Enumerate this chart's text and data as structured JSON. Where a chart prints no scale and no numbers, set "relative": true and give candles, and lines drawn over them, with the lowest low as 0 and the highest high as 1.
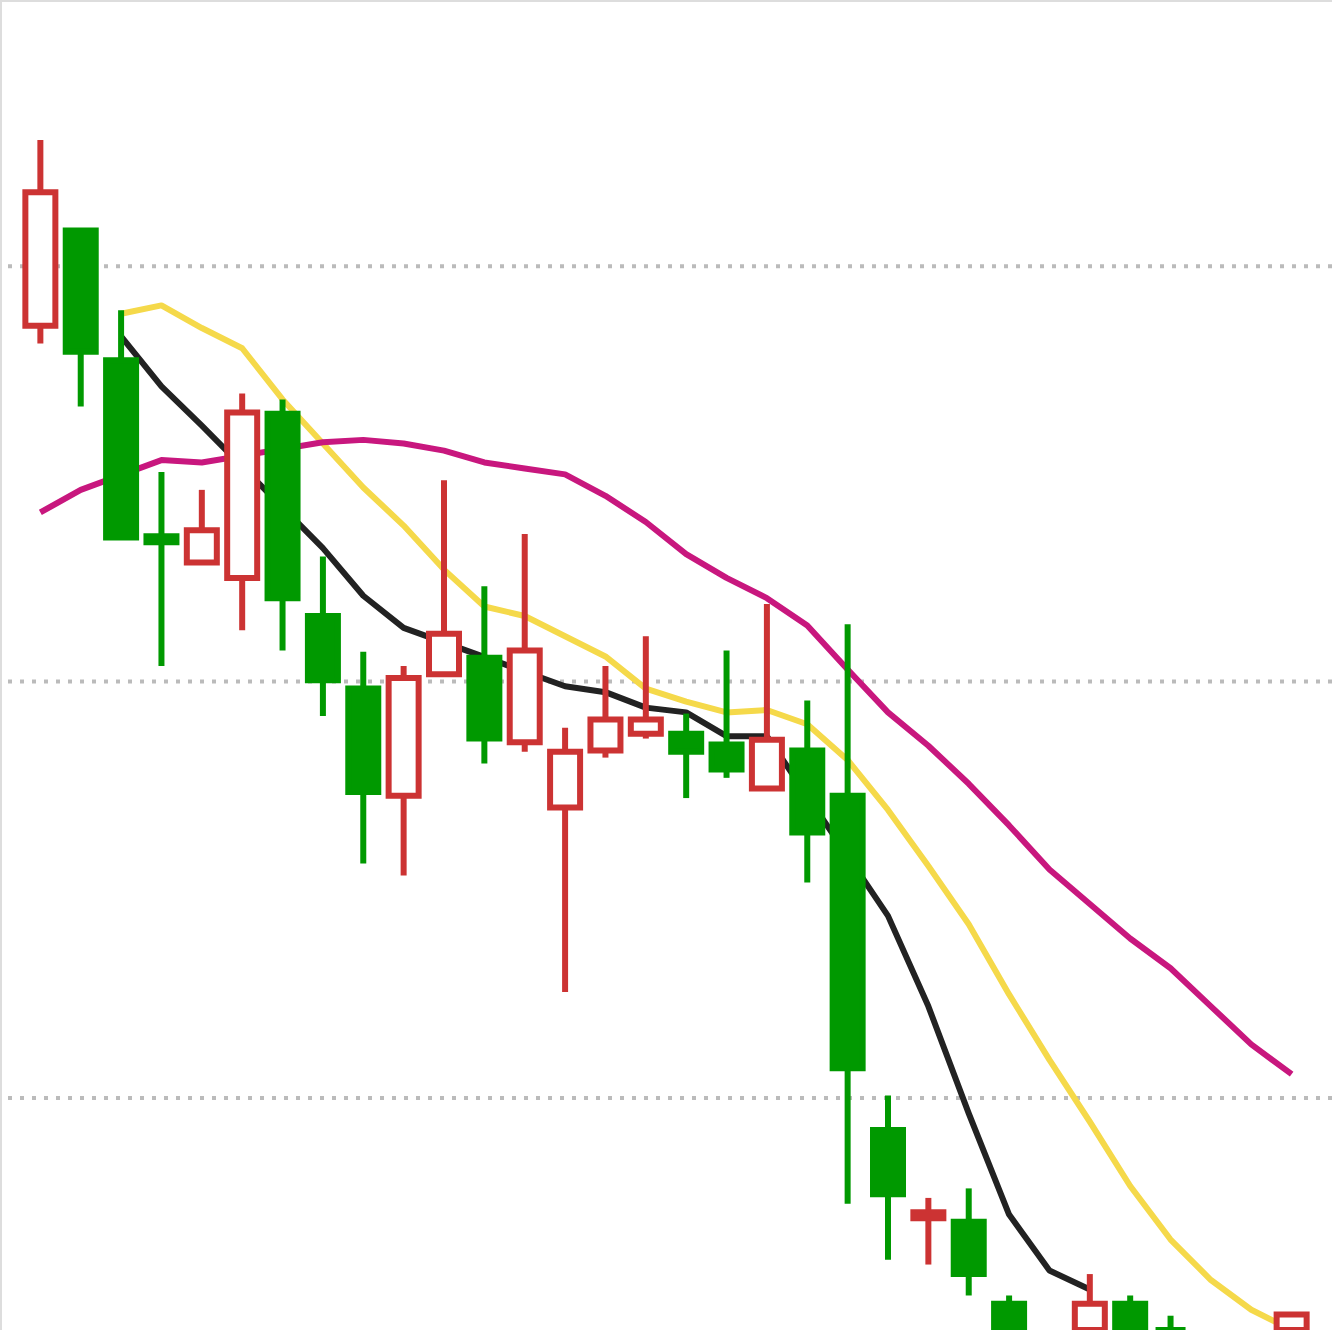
{
  "chart_data": {
    "type": "candlestick",
    "relative": true,
    "categories": [
      null,
      null,
      null,
      null,
      null,
      null,
      null,
      null,
      null,
      null,
      null,
      null,
      null,
      null,
      null,
      null,
      null,
      null,
      null,
      null,
      null,
      null,
      null,
      null,
      null,
      null,
      null,
      null,
      null,
      null,
      null,
      null
    ],
    "ohlc": [
      [
        0.844,
        1.0,
        0.829,
        0.956
      ],
      [
        0.924,
        0.924,
        0.776,
        0.822
      ],
      [
        0.815,
        0.857,
        0.666,
        0.666
      ],
      [
        0.667,
        0.721,
        0.558,
        0.662
      ],
      [
        0.645,
        0.706,
        0.645,
        0.672
      ],
      [
        0.632,
        0.787,
        0.588,
        0.771
      ],
      [
        0.77,
        0.782,
        0.571,
        0.615
      ],
      [
        0.6,
        0.65,
        0.516,
        0.546
      ],
      [
        0.539,
        0.57,
        0.392,
        0.452
      ],
      [
        0.449,
        0.558,
        0.382,
        0.548
      ],
      [
        0.551,
        0.714,
        0.551,
        0.585
      ],
      [
        0.565,
        0.625,
        0.476,
        0.497
      ],
      [
        0.494,
        0.669,
        0.486,
        0.571
      ],
      [
        0.439,
        0.506,
        0.284,
        0.486
      ],
      [
        0.487,
        0.558,
        0.481,
        0.513
      ],
      [
        0.501,
        0.583,
        0.497,
        0.513
      ],
      [
        0.501,
        0.518,
        0.447,
        0.486
      ],
      [
        0.492,
        0.571,
        0.464,
        0.471
      ],
      [
        0.455,
        0.61,
        0.454,
        0.496
      ],
      [
        0.487,
        0.529,
        0.376,
        0.418
      ],
      [
        0.449,
        0.593,
        0.106,
        0.22
      ],
      [
        0.168,
        0.197,
        0.059,
        0.114
      ],
      [
        0.094,
        0.111,
        0.055,
        0.099
      ],
      [
        0.091,
        0.119,
        0.029,
        0.047
      ],
      [
        0.022,
        0.029,
        0,
        0
      ],
      null,
      [
        0,
        0.047,
        0,
        0.022
      ],
      [
        0.022,
        0.029,
        0,
        0
      ],
      [
        0,
        0.012,
        0,
        0
      ],
      null,
      null,
      [
        0,
        0.013,
        0,
        0.013
      ]
    ],
    "colors": [
      "#cc3333",
      "#009900",
      "#009900",
      "#009900",
      "#cc3333",
      "#cc3333",
      "#009900",
      "#009900",
      "#009900",
      "#cc3333",
      "#cc3333",
      "#009900",
      "#cc3333",
      "#cc3333",
      "#cc3333",
      "#cc3333",
      "#009900",
      "#009900",
      "#cc3333",
      "#009900",
      "#009900",
      "#009900",
      "#cc3333",
      "#009900",
      "#009900",
      null,
      "#cc3333",
      "#009900",
      "#009900",
      null,
      null,
      "#cc3333"
    ],
    "series": [
      {
        "type": "line",
        "color": "#222222",
        "values": [
          null,
          null,
          0.835,
          0.793,
          0.76,
          null,
          null,
          0.657,
          0.617,
          0.59,
          null,
          null,
          null,
          0.541,
          0.536,
          0.523,
          0.519,
          0.499,
          0.499,
          null,
          null,
          0.348,
          0.272,
          0.182,
          0.097,
          0.05,
          0.034,
          null,
          null,
          null,
          null,
          null
        ]
      },
      {
        "type": "line",
        "color": "#f5d94a",
        "values": [
          null,
          null,
          0.854,
          0.861,
          0.842,
          0.825,
          0.782,
          0.745,
          0.708,
          0.676,
          0.639,
          0.608,
          0.6,
          0.583,
          0.566,
          0.539,
          0.528,
          0.519,
          0.521,
          0.509,
          0.479,
          0.437,
          0.39,
          0.341,
          0.282,
          0.227,
          0.175,
          0.121,
          0.076,
          0.042,
          0.017,
          0
        ]
      },
      {
        "type": "line",
        "color": "#c8177e",
        "values": [
          0.687,
          0.706,
          null,
          0.731,
          0.729,
          null,
          null,
          0.746,
          0.748,
          0.745,
          0.739,
          0.729,
          0.724,
          0.719,
          0.701,
          0.679,
          0.652,
          0.632,
          0.615,
          0.592,
          0.555,
          0.519,
          0.491,
          0.459,
          0.424,
          0.387,
          0.358,
          0.329,
          0.304,
          0.272,
          0.24,
          0.215
        ]
      }
    ],
    "ref_lines": [
      {
        "axis": "y",
        "value": 0.894,
        "color": "#bbbbbb",
        "line_style": "dotted"
      },
      {
        "axis": "y",
        "value": 0.545,
        "color": "#bbbbbb",
        "line_style": "dotted"
      },
      {
        "axis": "y",
        "value": 0.195,
        "color": "#bbbbbb",
        "line_style": "dotted"
      }
    ]
  }
}
